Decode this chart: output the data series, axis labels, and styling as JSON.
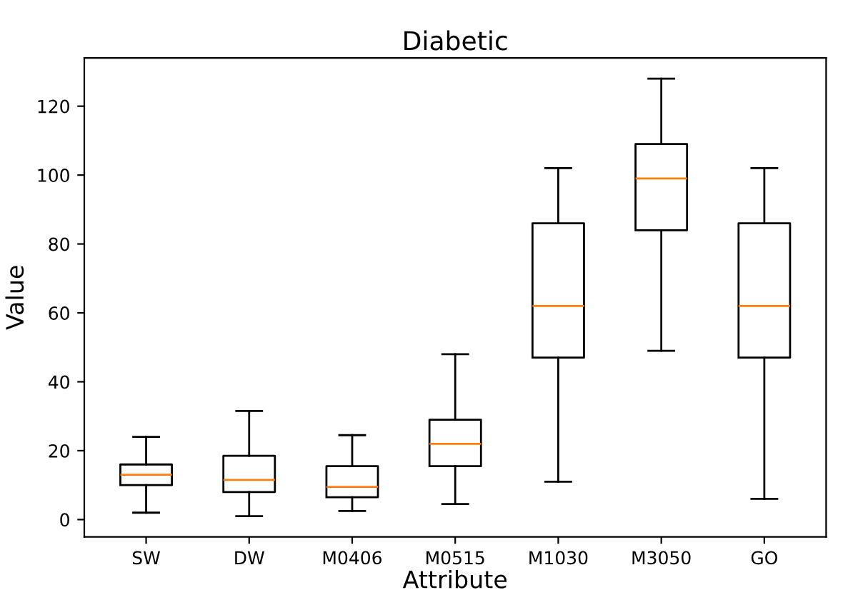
{
  "chart_data": {
    "type": "box",
    "title": "Diabetic",
    "xlabel": "Attribute",
    "ylabel": "Value",
    "categories": [
      "SW",
      "DW",
      "M0406",
      "M0515",
      "M1030",
      "M3050",
      "GO"
    ],
    "boxes": [
      {
        "low": 2,
        "q1": 10,
        "median": 13,
        "q3": 16,
        "high": 24
      },
      {
        "low": 1,
        "q1": 8,
        "median": 11.5,
        "q3": 18.5,
        "high": 31.5
      },
      {
        "low": 2.5,
        "q1": 6.5,
        "median": 9.5,
        "q3": 15.5,
        "high": 24.5
      },
      {
        "low": 4.5,
        "q1": 15.5,
        "median": 22,
        "q3": 29,
        "high": 48
      },
      {
        "low": 11,
        "q1": 47,
        "median": 62,
        "q3": 86,
        "high": 102
      },
      {
        "low": 49,
        "q1": 84,
        "median": 99,
        "q3": 109,
        "high": 128
      },
      {
        "low": 6,
        "q1": 47,
        "median": 62,
        "q3": 86,
        "high": 102
      }
    ],
    "color": "#000000",
    "ylim": [
      -5,
      134
    ],
    "yticks": [
      0,
      20,
      40,
      60,
      80,
      100,
      120
    ],
    "grid": false
  }
}
